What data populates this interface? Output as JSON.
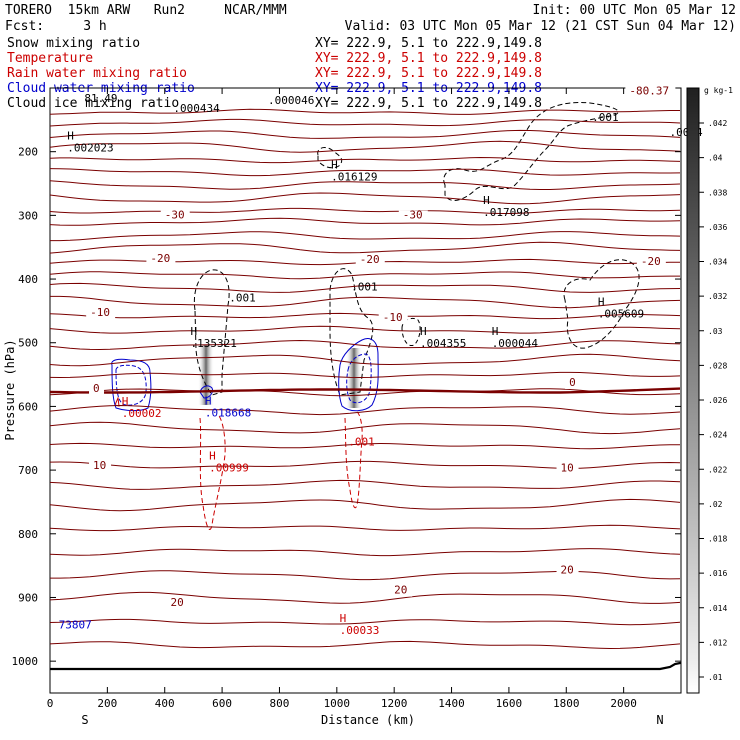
{
  "header": {
    "line1_left": "TORERO  15km ARW   Run2     NCAR/MMM",
    "line1_right": "Init: 00 UTC Mon 05 Mar 12",
    "line2_left": "Fcst:     3 h",
    "line2_right": "Valid: 03 UTC Mon 05 Mar 12 (21 CST Sun 04 Mar 12)"
  },
  "legend": [
    {
      "label": "Snow mixing ratio",
      "range": "XY= 222.9,  5.1 to 222.9,149.8",
      "color": "#000000"
    },
    {
      "label": "Temperature",
      "range": "XY= 222.9,  5.1 to 222.9,149.8",
      "color": "#cc0000"
    },
    {
      "label": "Rain water mixing ratio",
      "range": "XY= 222.9,  5.1 to 222.9,149.8",
      "color": "#cc0000"
    },
    {
      "label": "Cloud water mixing ratio",
      "range": "XY= 222.9,  5.1 to 222.9,149.8",
      "color": "#0000cc"
    },
    {
      "label": "Cloud ice mixing ratio",
      "range": "XY= 222.9,  5.1 to 222.9,149.8",
      "color": "#000000"
    }
  ],
  "colorbar": {
    "unit": "g kg-1",
    "ticks": [
      ".042",
      ".04",
      ".038",
      ".036",
      ".034",
      ".032",
      ".03",
      ".028",
      ".026",
      ".024",
      ".022",
      ".02",
      ".018",
      ".016",
      ".014",
      ".012",
      ".01"
    ]
  },
  "chart_data": {
    "type": "contour",
    "xlabel": "Distance (km)",
    "ylabel": "Pressure (hPa)",
    "xlim": [
      0,
      2200
    ],
    "ylim": [
      1050,
      100
    ],
    "x_ticks": [
      0,
      200,
      400,
      600,
      800,
      1000,
      1200,
      1400,
      1600,
      1800,
      2000
    ],
    "y_ticks": [
      1000,
      900,
      800,
      700,
      600,
      500,
      400,
      300,
      200
    ],
    "end_labels": {
      "left": "S",
      "right": "N"
    },
    "temperature_contours": {
      "labels": [
        {
          "text": "-80.37",
          "x": 2020,
          "p": 110
        },
        {
          "text": "-30",
          "x": 400,
          "p": 305
        },
        {
          "text": "-30",
          "x": 1230,
          "p": 305
        },
        {
          "text": "-20",
          "x": 350,
          "p": 373
        },
        {
          "text": "-20",
          "x": 1080,
          "p": 375
        },
        {
          "text": "-20",
          "x": 2060,
          "p": 378
        },
        {
          "text": "-10",
          "x": 140,
          "p": 458
        },
        {
          "text": "-10",
          "x": 1160,
          "p": 466
        },
        {
          "text": "0",
          "x": 150,
          "p": 577
        },
        {
          "text": "0",
          "x": 1810,
          "p": 568
        },
        {
          "text": "10",
          "x": 150,
          "p": 698
        },
        {
          "text": "10",
          "x": 1780,
          "p": 702
        },
        {
          "text": "20",
          "x": 420,
          "p": 913
        },
        {
          "text": "20",
          "x": 1200,
          "p": 894
        },
        {
          "text": "20",
          "x": 1780,
          "p": 862
        }
      ]
    },
    "extrema": [
      {
        "mark": "H",
        "value": ".002023",
        "x": 60,
        "p": 200,
        "color": "#000000"
      },
      {
        "mark": "H",
        "value": ".016129",
        "x": 980,
        "p": 245,
        "color": "#000000"
      },
      {
        "mark": "H",
        "value": ".017098",
        "x": 1510,
        "p": 301,
        "color": "#000000"
      },
      {
        "mark": "H",
        "value": ".135321",
        "x": 490,
        "p": 507,
        "color": "#000000"
      },
      {
        "mark": "H",
        "value": ".004355",
        "x": 1290,
        "p": 507,
        "color": "#000000"
      },
      {
        "mark": "H",
        "value": ".000044",
        "x": 1540,
        "p": 507,
        "color": "#000000"
      },
      {
        "mark": "H",
        "value": ".005609",
        "x": 1910,
        "p": 460,
        "color": "#000000"
      },
      {
        "mark": "H",
        "value": ".018668",
        "x": 540,
        "p": 616,
        "color": "#0000cc"
      },
      {
        "mark": "H",
        "value": ".00002",
        "x": 250,
        "p": 617,
        "color": "#cc0000"
      },
      {
        "mark": "H",
        "value": ".00999",
        "x": 555,
        "p": 702,
        "color": "#cc0000"
      },
      {
        "mark": "H",
        "value": ".00033",
        "x": 1010,
        "p": 957,
        "color": "#cc0000"
      }
    ],
    "contour_labels": [
      {
        "value": ".001",
        "x": 1890,
        "p": 152,
        "color": "#000000"
      },
      {
        "value": ".001",
        "x": 625,
        "p": 435,
        "color": "#000000"
      },
      {
        "value": ".001",
        "x": 1050,
        "p": 418,
        "color": "#000000"
      },
      {
        "value": ".001",
        "x": 1040,
        "p": 661,
        "color": "#cc0000"
      },
      {
        "value": ".0014",
        "x": 2160,
        "p": 175,
        "color": "#000000"
      },
      {
        "value": ".000046",
        "x": 760,
        "p": 125,
        "color": "#000000"
      },
      {
        "value": ".000434",
        "x": 430,
        "p": 138,
        "color": "#000000"
      },
      {
        "value": "81.49",
        "x": 120,
        "p": 122,
        "color": "#000000"
      },
      {
        "value": "73807",
        "x": 30,
        "p": 949,
        "color": "#0000cc"
      }
    ]
  }
}
